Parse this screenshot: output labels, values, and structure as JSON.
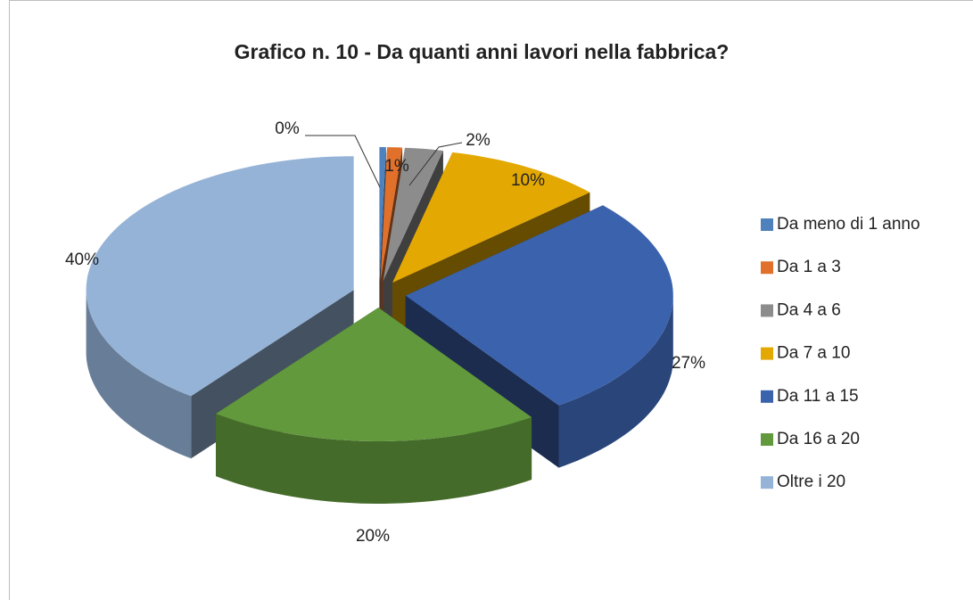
{
  "chart_data": {
    "type": "pie",
    "title": "Grafico n. 10 - Da quanti anni lavori nella fabbrica?",
    "categories": [
      "Da meno di 1 anno",
      "Da 1 a 3",
      "Da 4 a 6",
      "Da 7 a 10",
      "Da 11 a 15",
      "Da 16 a 20",
      "Oltre i 20"
    ],
    "values": [
      0.4,
      0.9,
      2.3,
      9.6,
      27.1,
      20.1,
      39.6
    ],
    "value_labels": [
      "0%",
      "1%",
      "2%",
      "10%",
      "27%",
      "20%",
      "40%"
    ],
    "colors": [
      "#4f81bd",
      "#e0702a",
      "#8c8c8c",
      "#e3a802",
      "#3b62ad",
      "#62993d",
      "#95b3d7"
    ],
    "legend": "right"
  }
}
